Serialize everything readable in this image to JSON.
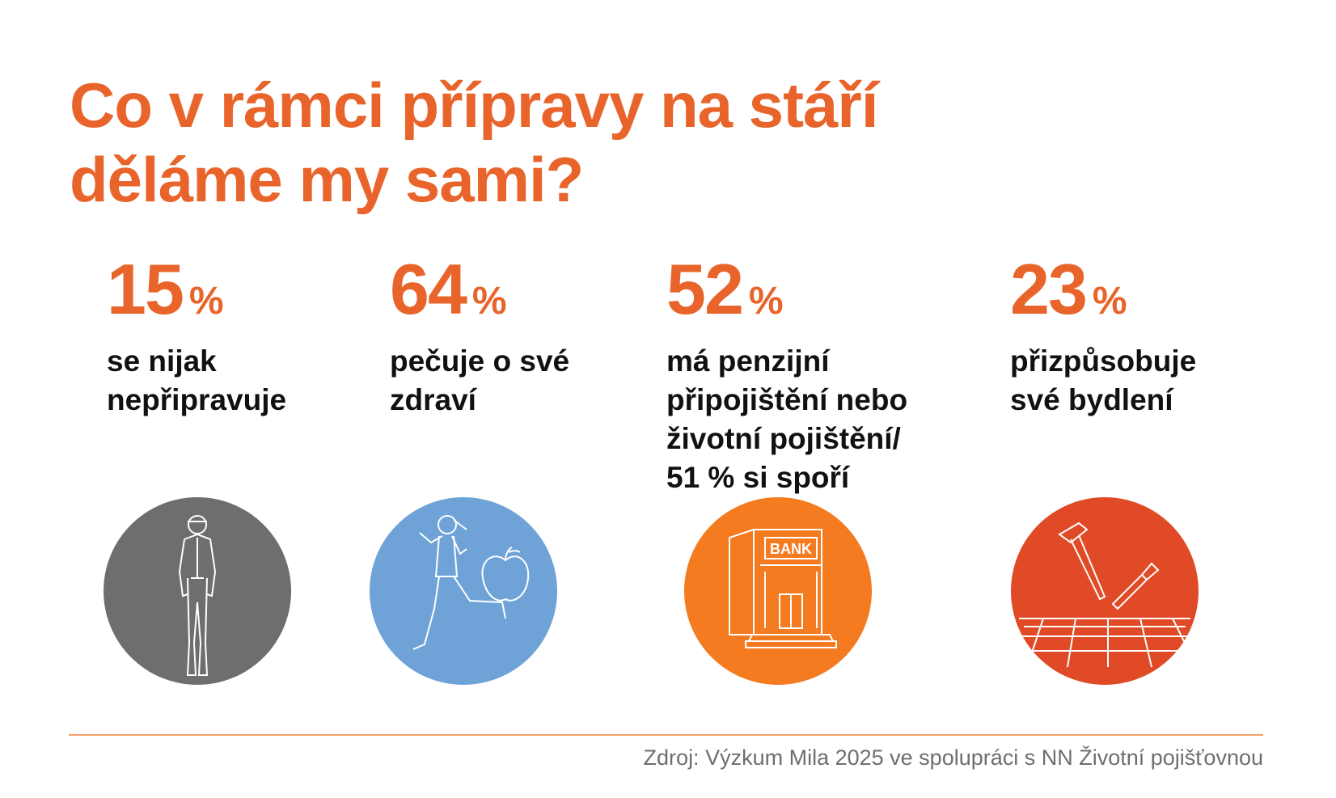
{
  "title": {
    "line1": "Co v rámci přípravy na stáří",
    "line2": "děláme my sami?"
  },
  "stats": [
    {
      "value": "15",
      "unit": "%",
      "lines": [
        "se nijak",
        "nepřipravuje"
      ],
      "icon": "man-standing-icon",
      "color": "#6d6e70"
    },
    {
      "value": "64",
      "unit": "%",
      "lines": [
        "pečuje o své",
        "zdraví"
      ],
      "icon": "runner-apple-icon",
      "color": "#6fa3d8"
    },
    {
      "value": "52",
      "unit": "%",
      "lines": [
        "má penzijní",
        "připojištění nebo",
        "životní pojištění/",
        "51 % si spoří"
      ],
      "icon": "bank-icon",
      "color": "#f47b20"
    },
    {
      "value": "23",
      "unit": "%",
      "lines": [
        "přizpůsobuje",
        "své bydlení"
      ],
      "icon": "tools-icon",
      "color": "#e04a26"
    }
  ],
  "bank_sign": "BANK",
  "source": "Zdroj: Výzkum Mila 2025 ve spolupráci s NN Životní pojišťovnou",
  "colors": {
    "accent": "#e8642a",
    "rule": "#f2a06a",
    "source_text": "#6d6e70"
  }
}
